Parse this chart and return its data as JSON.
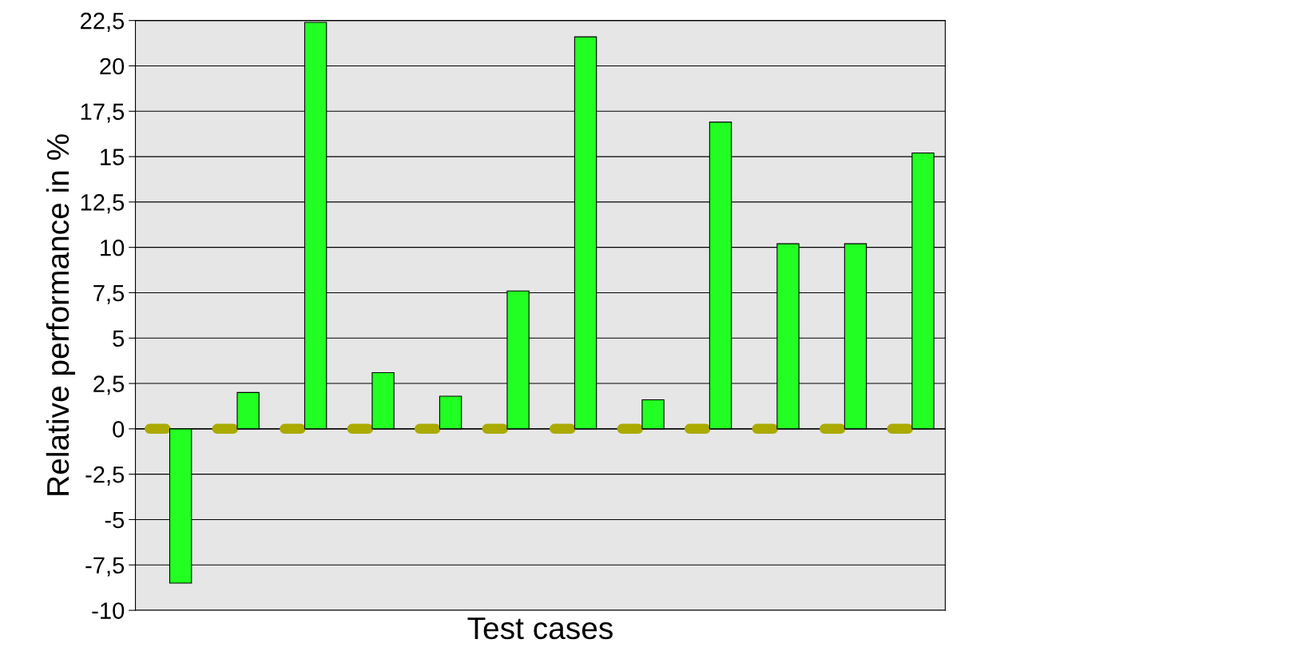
{
  "chart_data": {
    "type": "bar",
    "xlabel": "Test cases",
    "ylabel": "Relative performance in %",
    "categories": [
      null,
      null,
      null,
      null,
      null,
      null,
      null,
      null,
      null,
      null,
      null,
      null
    ],
    "series": [
      {
        "color": "#aaaa00",
        "values": [
          0,
          0,
          0,
          0,
          0,
          0,
          0,
          0,
          0,
          0,
          0,
          0
        ]
      },
      {
        "color": "#22ff22",
        "values": [
          -8.5,
          2.0,
          22.4,
          3.1,
          1.8,
          7.6,
          21.6,
          1.6,
          16.9,
          10.2,
          10.2,
          15.2
        ]
      }
    ],
    "ylim": [
      -10,
      22.5
    ],
    "yticks": [
      {
        "value": -10,
        "label": "-10"
      },
      {
        "value": -7.5,
        "label": "-7,5"
      },
      {
        "value": -5,
        "label": "-5"
      },
      {
        "value": -2.5,
        "label": "-2,5"
      },
      {
        "value": 0,
        "label": "0"
      },
      {
        "value": 2.5,
        "label": "2,5"
      },
      {
        "value": 5,
        "label": "5"
      },
      {
        "value": 7.5,
        "label": "7,5"
      },
      {
        "value": 10,
        "label": "10"
      },
      {
        "value": 12.5,
        "label": "12,5"
      },
      {
        "value": 15,
        "label": "15"
      },
      {
        "value": 17.5,
        "label": "17,5"
      },
      {
        "value": 20,
        "label": "20"
      },
      {
        "value": 22.5,
        "label": "22,5"
      }
    ],
    "grid": "y",
    "legend": false
  }
}
